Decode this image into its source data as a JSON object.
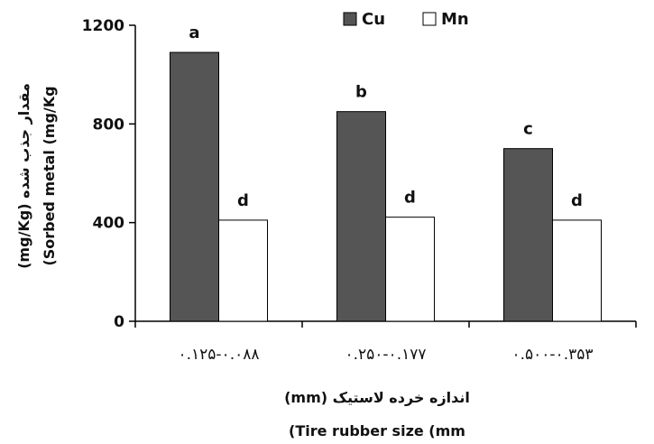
{
  "chart_data": {
    "type": "bar",
    "categories": [
      "۰.۱۲۵-۰.۰۸۸",
      "۰.۲۵۰-۰.۱۷۷",
      "۰.۵۰۰-۰.۳۵۳"
    ],
    "series": [
      {
        "name": "Cu",
        "color": "#555555",
        "values": [
          1090,
          850,
          700
        ],
        "labels": [
          "a",
          "b",
          "c"
        ]
      },
      {
        "name": "Mn",
        "color": "#ffffff",
        "values": [
          410,
          422,
          410
        ],
        "labels": [
          "d",
          "d",
          "d"
        ]
      }
    ],
    "yticks": [
      0,
      400,
      800,
      1200
    ],
    "ylim": [
      0,
      1200
    ],
    "ylabel_fa": "مقدار جذب شده (mg/Kg)",
    "ylabel_en": "(Sorbed metal (mg/Kg",
    "xlabel_fa": "اندازه خرده لاستیک (mm)",
    "xlabel_en": "(Tire rubber size (mm",
    "legend_position": "top",
    "grid": false
  }
}
